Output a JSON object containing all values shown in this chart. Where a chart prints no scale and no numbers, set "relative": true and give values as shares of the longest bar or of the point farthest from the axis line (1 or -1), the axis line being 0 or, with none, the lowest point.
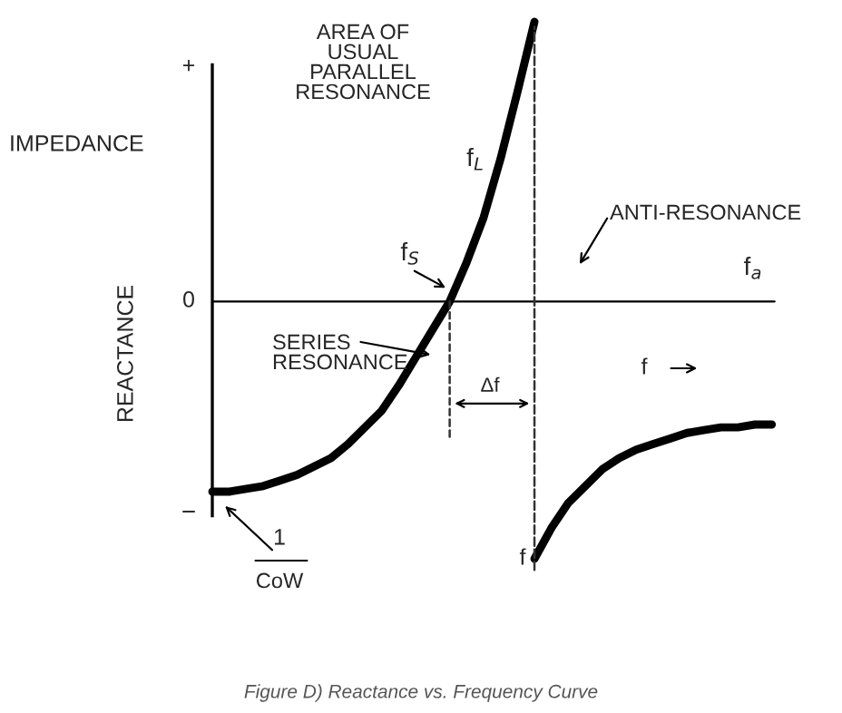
{
  "chart_data": {
    "type": "line",
    "relative": true,
    "title": "Figure D) Reactance vs. Frequency Curve",
    "ylabel": "REACTANCE",
    "categories": [
      null,
      null,
      null,
      null,
      null,
      null,
      null,
      null,
      null,
      null,
      null,
      null,
      null,
      null,
      null,
      null,
      null,
      null,
      null,
      null,
      null,
      null,
      null,
      null,
      null,
      null,
      null,
      null,
      null,
      null,
      null,
      null,
      null,
      null
    ],
    "series": [
      {
        "color": "#000000",
        "values": [
          -0.68,
          -0.68,
          -0.67,
          -0.66,
          -0.64,
          -0.62,
          -0.59,
          -0.56,
          -0.51,
          -0.45,
          -0.39,
          -0.3,
          -0.2,
          -0.1,
          0,
          0.14,
          0.3,
          0.51,
          0.75,
          1,
          null,
          null,
          null,
          null,
          null,
          null,
          null,
          null,
          null,
          null,
          null,
          null,
          null,
          null
        ]
      },
      {
        "color": "#000000",
        "values": [
          null,
          null,
          null,
          null,
          null,
          null,
          null,
          null,
          null,
          null,
          null,
          null,
          null,
          null,
          null,
          null,
          null,
          null,
          null,
          -0.92,
          -0.81,
          -0.72,
          -0.66,
          -0.6,
          -0.56,
          -0.53,
          -0.51,
          -0.49,
          -0.47,
          -0.46,
          -0.45,
          -0.45,
          -0.44,
          -0.44
        ]
      }
    ],
    "annotations": [
      "IMPEDANCE",
      "+",
      "0",
      "−",
      "AREA OF\nUSUAL\nPARALLEL\nRESONANCE",
      "f$_{L}$",
      "f$_{S}$",
      "ANTI-RESONANCE",
      "f$_{a}$",
      "SERIES\nRESONANCE",
      "Δf",
      "f",
      "f",
      "1",
      "CoW"
    ],
    "legend": false
  }
}
